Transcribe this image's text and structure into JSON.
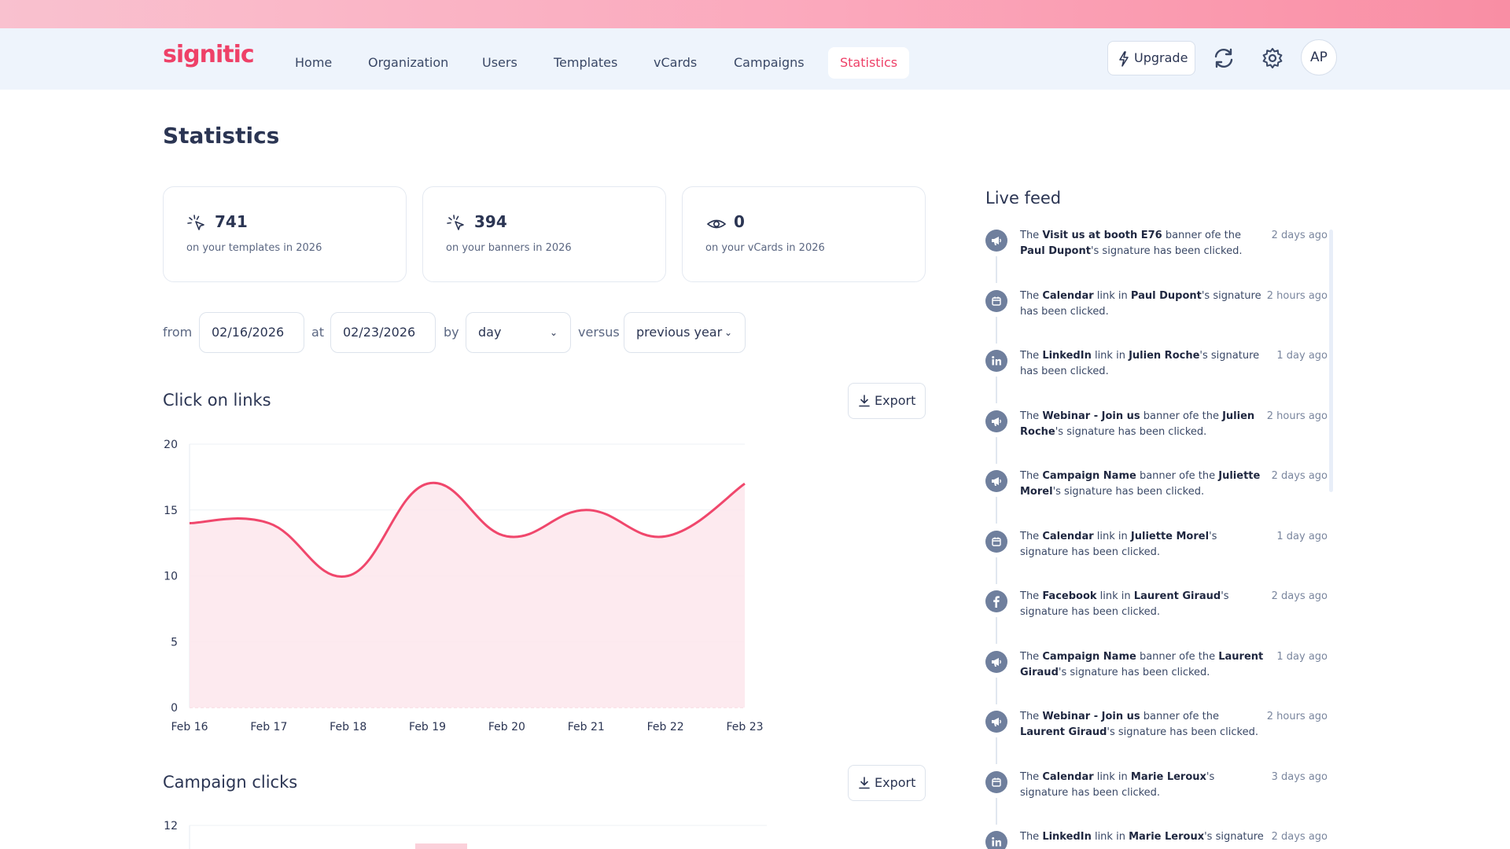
{
  "app": {
    "logo": "signitic"
  },
  "nav": {
    "home": "Home",
    "organization": "Organization",
    "users": "Users",
    "templates": "Templates",
    "vcards": "vCards",
    "campaigns": "Campaigns",
    "statistics": "Statistics",
    "active": "Statistics",
    "upgrade": "Upgrade",
    "avatar": "AP"
  },
  "page": {
    "title": "Statistics"
  },
  "stats": [
    {
      "value": "741",
      "label": "on your templates in 2026",
      "icon": "click-icon"
    },
    {
      "value": "394",
      "label": "on your banners in 2026",
      "icon": "click-icon"
    },
    {
      "value": "0",
      "label": "on your vCards in 2026",
      "icon": "eye-icon"
    }
  ],
  "filters": {
    "from_label": "from",
    "from_value": "02/16/2026",
    "at_label": "at",
    "at_value": "02/23/2026",
    "by_label": "by",
    "by_value": "day",
    "versus_label": "versus",
    "versus_value": "previous year"
  },
  "sections": {
    "clicks_title": "Click on links",
    "campaign_title": "Campaign clicks",
    "export_label": "Export"
  },
  "chart_data": [
    {
      "type": "area",
      "title": "Click on links",
      "xlabel": "",
      "ylabel": "",
      "x": [
        "Feb 16",
        "Feb 17",
        "Feb 18",
        "Feb 19",
        "Feb 20",
        "Feb 21",
        "Feb 22",
        "Feb 23"
      ],
      "series": [
        {
          "values": [
            14,
            14,
            10,
            17,
            13,
            15,
            13,
            17
          ]
        }
      ],
      "yticks": [
        0,
        5,
        10,
        15,
        20
      ],
      "ylim": [
        0,
        20
      ],
      "grid": true,
      "color": "#f0476c",
      "fill": "#fde6ec"
    },
    {
      "type": "bar",
      "title": "Campaign clicks",
      "xlabel": "",
      "ylabel": "",
      "yticks_visible": [
        12
      ],
      "color": "#fbd0da"
    }
  ],
  "live_feed": {
    "title": "Live feed",
    "items": [
      {
        "icon": "megaphone-icon",
        "parts": [
          "The ",
          "*Visit us at booth E76",
          " banner ofe the ",
          "*Paul Dupont",
          "'s signature has been clicked."
        ],
        "time": "2 days ago"
      },
      {
        "icon": "calendar-icon",
        "parts": [
          "The ",
          "*Calendar",
          " link in ",
          "*Paul Dupont",
          "'s signature has been clicked."
        ],
        "time": "2 hours ago"
      },
      {
        "icon": "linkedin-icon",
        "parts": [
          "The ",
          "*LinkedIn",
          " link in ",
          "*Julien Roche",
          "'s signature has been clicked."
        ],
        "time": "1 day ago"
      },
      {
        "icon": "megaphone-icon",
        "parts": [
          "The ",
          "*Webinar - Join us",
          " banner ofe the ",
          "*Julien Roche",
          "'s signature has been clicked."
        ],
        "time": "2 hours ago"
      },
      {
        "icon": "megaphone-icon",
        "parts": [
          "The ",
          "*Campaign Name",
          " banner ofe the ",
          "*Juliette Morel",
          "'s signature has been clicked."
        ],
        "time": "2 days ago"
      },
      {
        "icon": "calendar-icon",
        "parts": [
          "The ",
          "*Calendar",
          " link in ",
          "*Juliette Morel",
          "'s signature has been clicked."
        ],
        "time": "1 day ago"
      },
      {
        "icon": "facebook-icon",
        "parts": [
          "The ",
          "*Facebook",
          " link in ",
          "*Laurent Giraud",
          "'s signature has been clicked."
        ],
        "time": "2 days ago"
      },
      {
        "icon": "megaphone-icon",
        "parts": [
          "The ",
          "*Campaign Name",
          " banner ofe the ",
          "*Laurent Giraud",
          "'s signature has been clicked."
        ],
        "time": "1 day ago"
      },
      {
        "icon": "megaphone-icon",
        "parts": [
          "The ",
          "*Webinar - Join us",
          " banner ofe the ",
          "*Laurent Giraud",
          "'s signature has been clicked."
        ],
        "time": "2 hours ago"
      },
      {
        "icon": "calendar-icon",
        "parts": [
          "The ",
          "*Calendar",
          " link in ",
          "*Marie Leroux",
          "'s signature has been clicked."
        ],
        "time": "3 days ago"
      },
      {
        "icon": "linkedin-icon",
        "parts": [
          "The ",
          "*LinkedIn",
          " link in ",
          "*Marie Leroux",
          "'s signature"
        ],
        "time": "2 days ago"
      }
    ]
  }
}
